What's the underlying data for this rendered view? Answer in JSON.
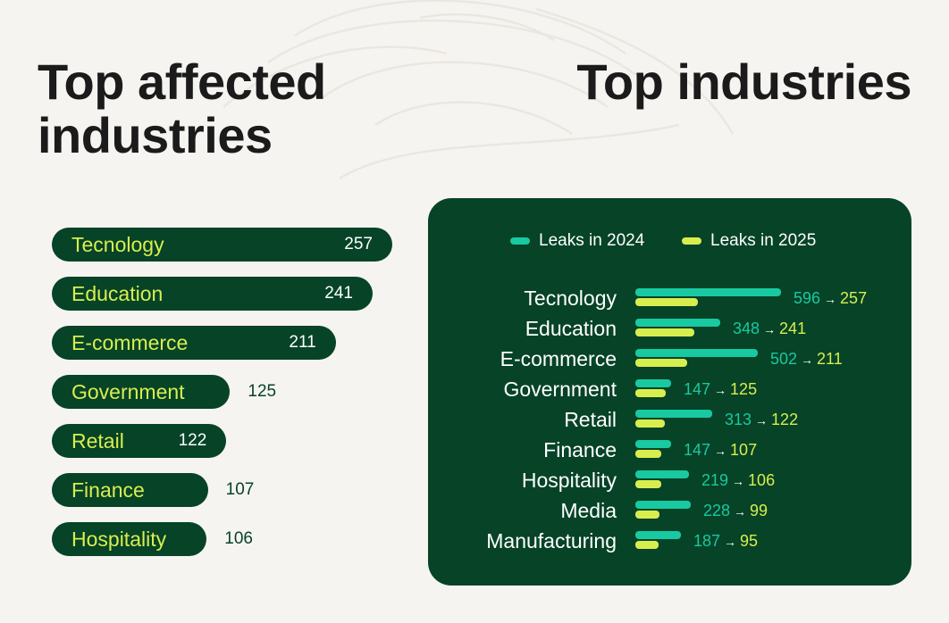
{
  "colors": {
    "background": "#f6f4f1",
    "dark_green": "#064327",
    "lime": "#d8ee4f",
    "teal": "#19c9a1",
    "title_text": "#1b1b1b"
  },
  "chart_data": [
    {
      "type": "bar",
      "orientation": "horizontal",
      "title": "Top affected industries",
      "categories": [
        "Tecnology",
        "Education",
        "E-commerce",
        "Government",
        "Retail",
        "Finance",
        "Hospitality"
      ],
      "values": [
        257,
        241,
        211,
        125,
        122,
        107,
        106
      ],
      "xlabel": "",
      "ylabel": ""
    },
    {
      "type": "bar",
      "orientation": "horizontal",
      "title": "Top industries",
      "legend": {
        "position": "top",
        "labels": [
          "Leaks in 2024",
          "Leaks in 2025"
        ]
      },
      "categories": [
        "Tecnology",
        "Education",
        "E-commerce",
        "Government",
        "Retail",
        "Finance",
        "Hospitality",
        "Media",
        "Manufacturing"
      ],
      "series": [
        {
          "name": "Leaks in 2024",
          "values": [
            596,
            348,
            502,
            147,
            313,
            147,
            219,
            228,
            187
          ]
        },
        {
          "name": "Leaks in 2025",
          "values": [
            257,
            241,
            211,
            125,
            122,
            107,
            106,
            99,
            95
          ]
        }
      ],
      "arrow_symbol": "→",
      "xlabel": "",
      "ylabel": ""
    }
  ]
}
